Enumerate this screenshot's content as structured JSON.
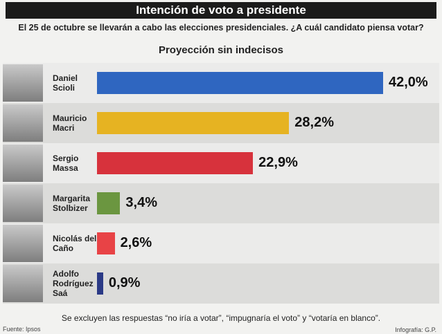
{
  "chart_data": {
    "type": "bar",
    "title": "Intención de voto a presidente",
    "subtitle": "El 25 de octubre se llevarán a cabo las elecciones presidenciales. ¿A cuál candidato piensa votar?",
    "heading": "Proyección sin indecisos",
    "categories": [
      "Daniel Scioli",
      "Mauricio Macri",
      "Sergio Massa",
      "Margarita Stolbizer",
      "Nicolás del Caño",
      "Adolfo Rodríguez Saá"
    ],
    "values": [
      42.0,
      28.2,
      22.9,
      3.4,
      2.6,
      0.9
    ],
    "value_labels": [
      "42,0%",
      "28,2%",
      "22,9%",
      "3,4%",
      "2,6%",
      "0,9%"
    ],
    "colors": [
      "#2f66c0",
      "#e6b322",
      "#d7323c",
      "#6b9640",
      "#e84346",
      "#2b3a86"
    ],
    "note": "Se excluyen las respuestas “no iría a votar”, “impugnaría el voto” y “votaría en blanco”.",
    "source": "Fuente: Ipsos",
    "credit": "Infografía: G.P."
  }
}
